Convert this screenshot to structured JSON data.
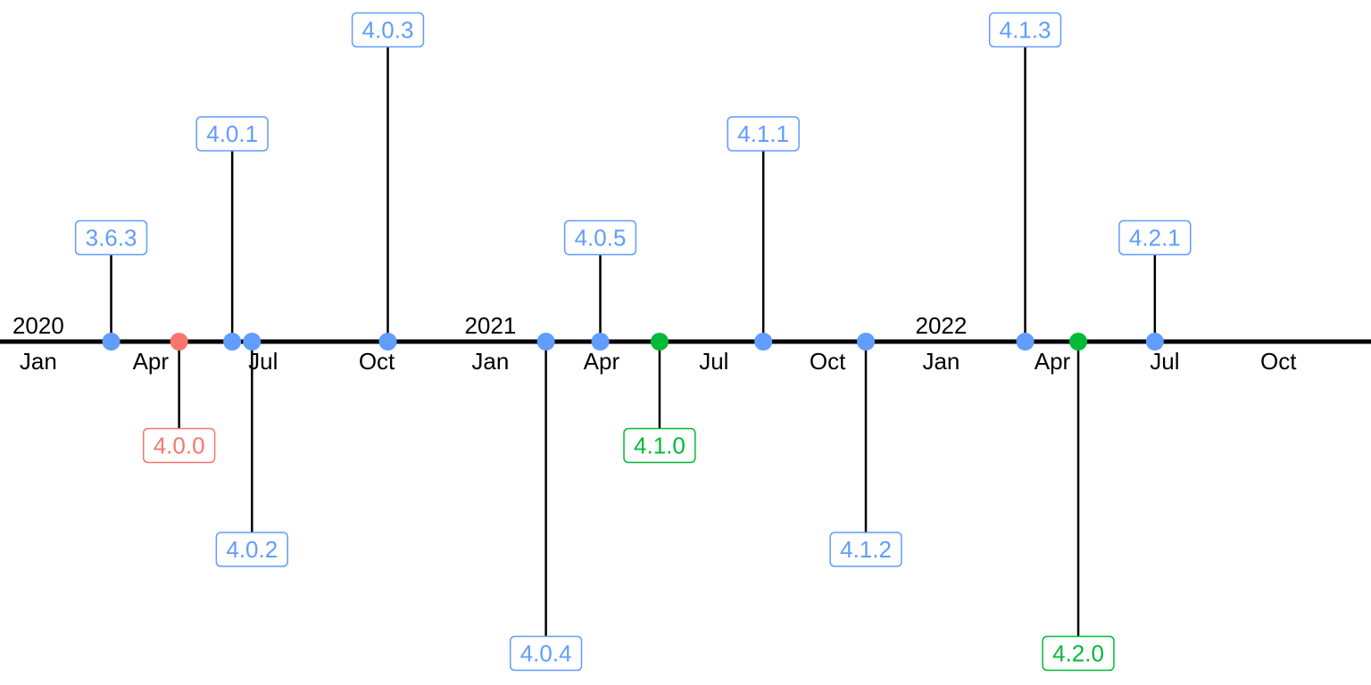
{
  "chart_data": {
    "type": "timeline",
    "title": "",
    "x_range": [
      "2019-12-01",
      "2022-12-15"
    ],
    "colors": {
      "axis": "#000000",
      "stem": "#000000",
      "patch": "#619CFF",
      "major": "#F8766D",
      "minor": "#00BA38"
    },
    "month_ticks": [
      {
        "date": "2020-01-01",
        "label": "Jan"
      },
      {
        "date": "2020-04-01",
        "label": "Apr"
      },
      {
        "date": "2020-07-01",
        "label": "Jul"
      },
      {
        "date": "2020-10-01",
        "label": "Oct"
      },
      {
        "date": "2021-01-01",
        "label": "Jan"
      },
      {
        "date": "2021-04-01",
        "label": "Apr"
      },
      {
        "date": "2021-07-01",
        "label": "Jul"
      },
      {
        "date": "2021-10-01",
        "label": "Oct"
      },
      {
        "date": "2022-01-01",
        "label": "Jan"
      },
      {
        "date": "2022-04-01",
        "label": "Apr"
      },
      {
        "date": "2022-07-01",
        "label": "Jul"
      },
      {
        "date": "2022-10-01",
        "label": "Oct"
      }
    ],
    "year_ticks": [
      {
        "date": "2020-01-01",
        "label": "2020"
      },
      {
        "date": "2021-01-01",
        "label": "2021"
      },
      {
        "date": "2022-01-01",
        "label": "2022"
      }
    ],
    "releases": [
      {
        "version": "3.6.3",
        "date": "2020-02-29",
        "level": 1,
        "type": "patch"
      },
      {
        "version": "4.0.0",
        "date": "2020-04-24",
        "level": -1,
        "type": "major"
      },
      {
        "version": "4.0.1",
        "date": "2020-06-06",
        "level": 2,
        "type": "patch"
      },
      {
        "version": "4.0.2",
        "date": "2020-06-22",
        "level": -2,
        "type": "patch"
      },
      {
        "version": "4.0.3",
        "date": "2020-10-10",
        "level": 3,
        "type": "patch"
      },
      {
        "version": "4.0.4",
        "date": "2021-02-15",
        "level": -3,
        "type": "patch"
      },
      {
        "version": "4.0.5",
        "date": "2021-03-31",
        "level": 1,
        "type": "patch"
      },
      {
        "version": "4.1.0",
        "date": "2021-05-18",
        "level": -1,
        "type": "minor"
      },
      {
        "version": "4.1.1",
        "date": "2021-08-10",
        "level": 2,
        "type": "patch"
      },
      {
        "version": "4.1.2",
        "date": "2021-11-01",
        "level": -2,
        "type": "patch"
      },
      {
        "version": "4.1.3",
        "date": "2022-03-10",
        "level": 3,
        "type": "patch"
      },
      {
        "version": "4.2.0",
        "date": "2022-04-22",
        "level": -3,
        "type": "minor"
      },
      {
        "version": "4.2.1",
        "date": "2022-06-23",
        "level": 1,
        "type": "patch"
      }
    ]
  }
}
